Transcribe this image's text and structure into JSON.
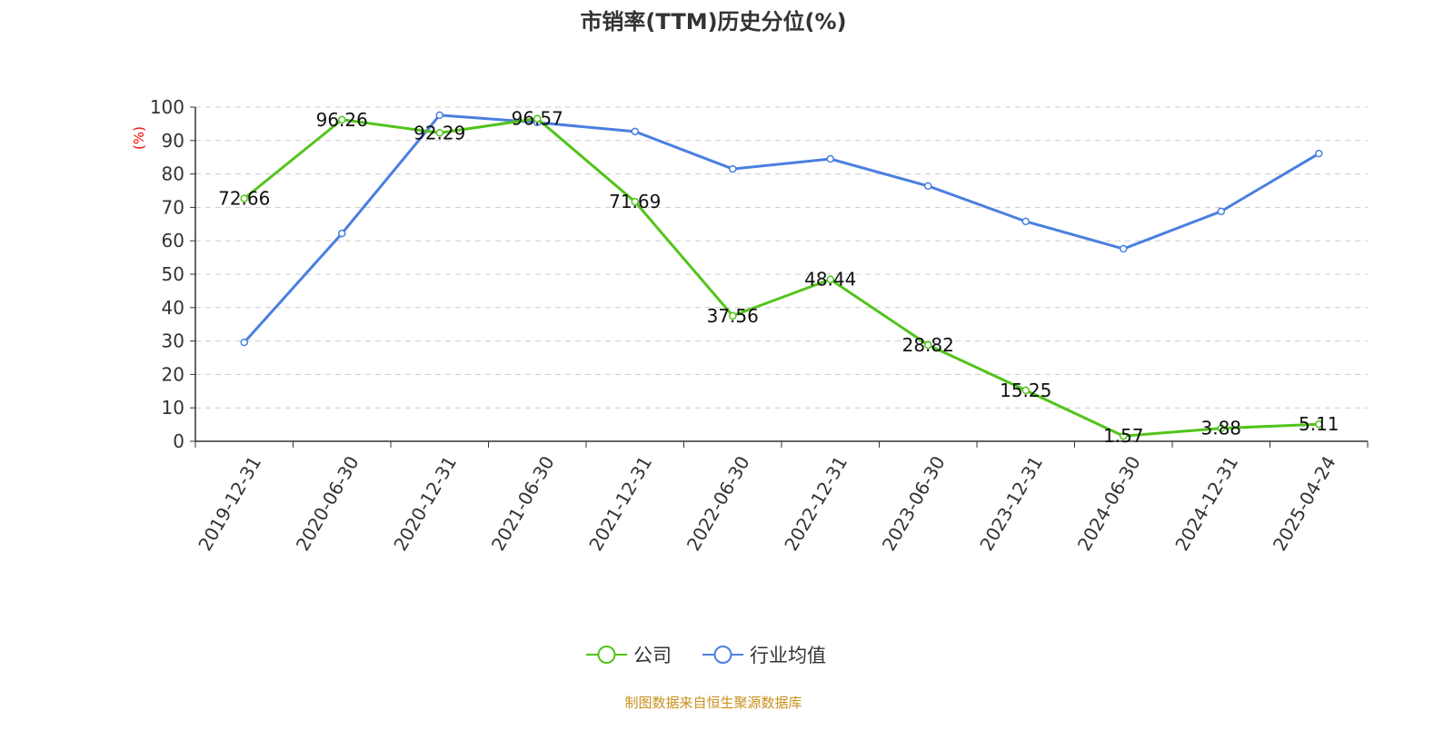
{
  "chart_data": {
    "type": "line",
    "title": "市销率(TTM)历史分位(%)",
    "ylabel": "(%)",
    "xlabel": "",
    "ylim": [
      0,
      100
    ],
    "yticks": [
      0,
      10,
      20,
      30,
      40,
      50,
      60,
      70,
      80,
      90,
      100
    ],
    "grid": true,
    "legend_position": "bottom",
    "categories": [
      "2019-12-31",
      "2020-06-30",
      "2020-12-31",
      "2021-06-30",
      "2021-12-31",
      "2022-06-30",
      "2022-12-31",
      "2023-06-30",
      "2023-12-31",
      "2024-06-30",
      "2024-12-31",
      "2025-04-24"
    ],
    "series": [
      {
        "name": "公司",
        "color": "#52c41a",
        "labeled": true,
        "values": [
          72.66,
          96.26,
          92.29,
          96.57,
          71.69,
          37.56,
          48.44,
          28.82,
          15.25,
          1.57,
          3.88,
          5.11
        ]
      },
      {
        "name": "行业均值",
        "color": "#4a7fe0",
        "labeled": false,
        "values": [
          29.6,
          62.2,
          97.6,
          95.4,
          92.7,
          81.5,
          84.5,
          76.4,
          65.8,
          57.6,
          68.8,
          86.1
        ]
      }
    ]
  },
  "footer": {
    "source": "制图数据来自恒生聚源数据库",
    "color": "#c8901c"
  }
}
